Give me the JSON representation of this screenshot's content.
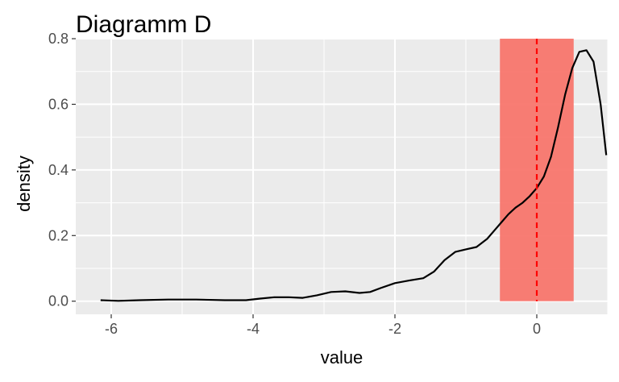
{
  "chart_data": {
    "type": "line",
    "title": "Diagramm D",
    "xlabel": "value",
    "ylabel": "density",
    "xlim": [
      -6.5,
      1.0
    ],
    "ylim": [
      -0.04,
      0.8
    ],
    "x_ticks": [
      "-6",
      "-4",
      "-2",
      "0"
    ],
    "x_tick_values": [
      -6,
      -4,
      -2,
      0
    ],
    "y_ticks": [
      "0.0",
      "0.2",
      "0.4",
      "0.6",
      "0.8"
    ],
    "y_tick_values": [
      0.0,
      0.2,
      0.4,
      0.6,
      0.8
    ],
    "grid": true,
    "series": [
      {
        "color": "#000000",
        "x": [
          -6.15,
          -5.9,
          -5.6,
          -5.2,
          -4.8,
          -4.4,
          -4.1,
          -3.9,
          -3.7,
          -3.5,
          -3.3,
          -3.1,
          -2.9,
          -2.7,
          -2.5,
          -2.35,
          -2.2,
          -2.0,
          -1.8,
          -1.6,
          -1.45,
          -1.3,
          -1.15,
          -1.0,
          -0.85,
          -0.7,
          -0.6,
          -0.5,
          -0.4,
          -0.3,
          -0.2,
          -0.1,
          0.0,
          0.1,
          0.2,
          0.3,
          0.4,
          0.5,
          0.6,
          0.7,
          0.8,
          0.9,
          0.98
        ],
        "y": [
          0.003,
          0.001,
          0.003,
          0.005,
          0.005,
          0.003,
          0.003,
          0.008,
          0.012,
          0.012,
          0.01,
          0.018,
          0.028,
          0.03,
          0.025,
          0.028,
          0.04,
          0.055,
          0.063,
          0.07,
          0.09,
          0.125,
          0.15,
          0.158,
          0.165,
          0.19,
          0.215,
          0.24,
          0.265,
          0.285,
          0.3,
          0.32,
          0.345,
          0.38,
          0.44,
          0.53,
          0.63,
          0.71,
          0.76,
          0.765,
          0.73,
          0.6,
          0.445
        ]
      }
    ],
    "shaded_region": {
      "x": [
        -0.52,
        0.52
      ],
      "color": "#f8766d"
    },
    "vline": {
      "x": 0,
      "color": "#ff0000",
      "style": "dashed"
    }
  }
}
